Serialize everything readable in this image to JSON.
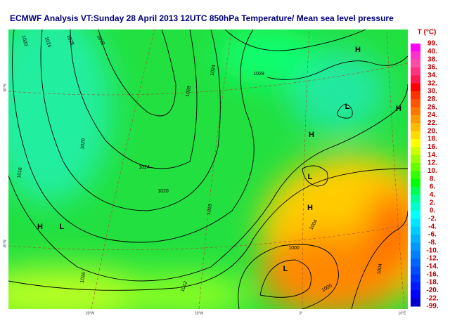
{
  "header": {
    "title": "ECMWF  Analysis VT:Sunday 28 April 2013 12UTC 850hPa Temperature/  Mean sea level pressure"
  },
  "legend": {
    "title": "T (°C)",
    "labels": [
      "99.",
      "40.",
      "38.",
      "36.",
      "34.",
      "32.",
      "30.",
      "28.",
      "26.",
      "24.",
      "22.",
      "20.",
      "18.",
      "16.",
      "14.",
      "12.",
      "10.",
      "8.",
      "6.",
      "4.",
      "2.",
      "0.",
      "-2.",
      "-4.",
      "-6.",
      "-8.",
      "-10.",
      "-12.",
      "-14.",
      "-16.",
      "-18.",
      "-20.",
      "-22.",
      "-99."
    ],
    "colors": [
      "#ff00ff",
      "#ff33cc",
      "#ff4da6",
      "#ff3380",
      "#ff1a4d",
      "#ff0000",
      "#ff3300",
      "#ff5500",
      "#ff7700",
      "#ff9900",
      "#ffbb00",
      "#ffdd00",
      "#ffff00",
      "#ccff00",
      "#99ff00",
      "#66ff00",
      "#33ff00",
      "#00ff00",
      "#00ff55",
      "#00ff99",
      "#00ffcc",
      "#00ffff",
      "#00e6ff",
      "#00ccff",
      "#00b3ff",
      "#0099ff",
      "#0080ff",
      "#0066ff",
      "#004dff",
      "#0033ff",
      "#001aff",
      "#0000ff",
      "#0000cc"
    ]
  },
  "map": {
    "pressure_centers": [
      "H",
      "L",
      "H",
      "H",
      "L",
      "H",
      "H",
      "L",
      "L"
    ],
    "isobar_labels": [
      "1020",
      "1024",
      "1028",
      "1032",
      "1028",
      "1024",
      "1028",
      "1016",
      "1020",
      "1024",
      "1020",
      "1016",
      "1012",
      "1016",
      "1004",
      "1000",
      "1000",
      "1004"
    ],
    "lon_labels": [
      "20°W",
      "10°W",
      "0°",
      "10°E"
    ],
    "lat_labels": [
      "40°N",
      "30°N"
    ]
  }
}
